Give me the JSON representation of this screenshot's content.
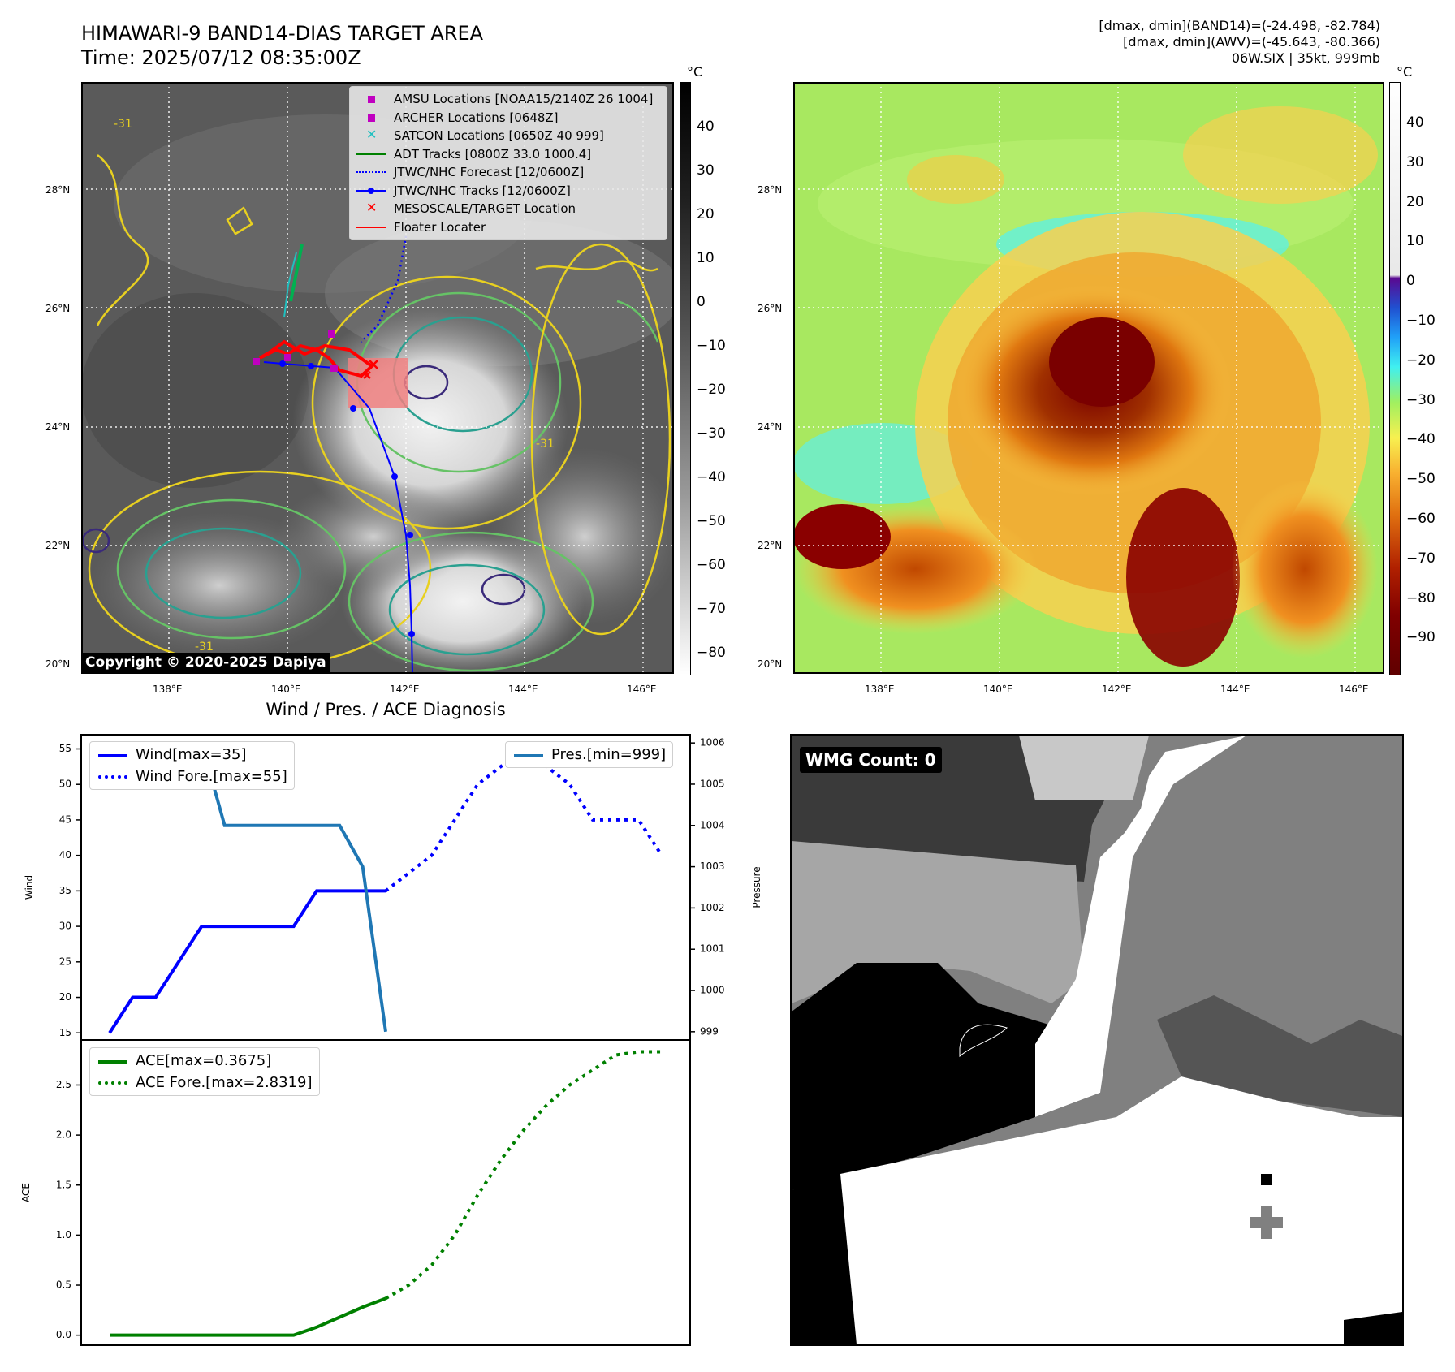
{
  "header": {
    "title_line1": "HIMAWARI-9 BAND14-DIAS TARGET AREA",
    "title_line2": "Time: 2025/07/12 08:35:00Z",
    "meta_line1": "[dmax, dmin](BAND14)=(-24.498, -82.784)",
    "meta_line2": "[dmax, dmin](AWV)=(-45.643, -80.366)",
    "meta_line3": "06W.SIX | 35kt, 999mb"
  },
  "map": {
    "lat_labels": [
      "28°N",
      "26°N",
      "24°N",
      "22°N",
      "20°N"
    ],
    "lon_labels": [
      "138°E",
      "140°E",
      "142°E",
      "144°E",
      "146°E"
    ],
    "copyright": "Copyright © 2020-2025 Dapiya",
    "contour_label": "-31",
    "legend": [
      {
        "label": "AMSU Locations [NOAA15/2140Z 26 1004]",
        "icon": "square-marker",
        "color": "#c000c0"
      },
      {
        "label": "ARCHER Locations [0648Z]",
        "icon": "square-marker",
        "color": "#c000c0"
      },
      {
        "label": "SATCON Locations [0650Z 40 999]",
        "icon": "x-marker",
        "color": "#20c0c0"
      },
      {
        "label": "ADT Tracks [0800Z 33.0 1000.4]",
        "icon": "solid-line",
        "color": "#008000"
      },
      {
        "label": "JTWC/NHC Forecast [12/0600Z]",
        "icon": "dotted-line",
        "color": "#0000ff"
      },
      {
        "label": "JTWC/NHC Tracks [12/0600Z]",
        "icon": "line-dot",
        "color": "#0000ff"
      },
      {
        "label": "MESOSCALE/TARGET Location",
        "icon": "x-marker",
        "color": "#ff0000"
      },
      {
        "label": "Floater Locater",
        "icon": "solid-line",
        "color": "#ff0000"
      }
    ]
  },
  "colorbar_gray": {
    "unit": "°C",
    "ticks": [
      "40",
      "30",
      "20",
      "10",
      "0",
      "−10",
      "−20",
      "−30",
      "−40",
      "−50",
      "−60",
      "−70",
      "−80"
    ]
  },
  "colorbar_color": {
    "unit": "°C",
    "ticks": [
      "40",
      "30",
      "20",
      "10",
      "0",
      "−10",
      "−20",
      "−30",
      "−40",
      "−50",
      "−60",
      "−70",
      "−80",
      "−90"
    ]
  },
  "diagnosis": {
    "title": "Wind / Pres. / ACE Diagnosis",
    "wind_axis_label": "Wind",
    "pressure_axis_label": "Pressure",
    "ace_axis_label": "ACE",
    "wind_ticks": [
      "55",
      "50",
      "45",
      "40",
      "35",
      "30",
      "25",
      "20",
      "15"
    ],
    "pressure_ticks": [
      "1006",
      "1005",
      "1004",
      "1003",
      "1002",
      "1001",
      "1000",
      "999"
    ],
    "ace_ticks": [
      "2.5",
      "2.0",
      "1.5",
      "1.0",
      "0.5",
      "0.0"
    ],
    "legend_wind": "Wind[max=35]",
    "legend_wind_fore": "Wind Fore.[max=55]",
    "legend_pres": "Pres.[min=999]",
    "legend_ace": "ACE[max=0.3675]",
    "legend_ace_fore": "ACE Fore.[max=2.8319]"
  },
  "chart_data": [
    {
      "type": "line",
      "title": "Wind / Pres. / ACE Diagnosis",
      "ylabel": "Wind",
      "ylim": [
        14,
        57
      ],
      "x": [
        0,
        1,
        2,
        3,
        4,
        5,
        6,
        7,
        8,
        9,
        10,
        11,
        12,
        13,
        14,
        15,
        16,
        17,
        18,
        19,
        20,
        21,
        22,
        23,
        24
      ],
      "series": [
        {
          "name": "Wind[max=35]",
          "color": "#0000ff",
          "style": "solid",
          "x": [
            0,
            1,
            2,
            3,
            4,
            5,
            6,
            7,
            8,
            9,
            10,
            11,
            12
          ],
          "values": [
            15,
            20,
            20,
            25,
            30,
            30,
            30,
            30,
            30,
            35,
            35,
            35,
            35
          ]
        },
        {
          "name": "Wind Fore.[max=55]",
          "color": "#0000ff",
          "style": "dotted",
          "x": [
            12,
            13,
            14,
            15,
            16,
            17,
            18,
            19,
            20,
            21,
            22,
            23,
            24
          ],
          "values": [
            35,
            37.5,
            40,
            45,
            50,
            52.5,
            55,
            52.5,
            50,
            45,
            45,
            45,
            40
          ]
        }
      ]
    },
    {
      "type": "line",
      "ylabel": "Pressure",
      "ylim": [
        998.8,
        1006.2
      ],
      "series": [
        {
          "name": "Pres.[min=999]",
          "color": "#1f77b4",
          "style": "solid",
          "x": [
            0,
            1,
            2,
            3,
            4,
            5,
            6,
            7,
            8,
            9,
            10,
            11,
            12
          ],
          "values": [
            1006,
            1006,
            1006,
            1006,
            1006,
            1004,
            1004,
            1004,
            1004,
            1004,
            1004,
            1003,
            999
          ]
        }
      ]
    },
    {
      "type": "line",
      "ylabel": "ACE",
      "ylim": [
        -0.1,
        2.95
      ],
      "series": [
        {
          "name": "ACE[max=0.3675]",
          "color": "#008000",
          "style": "solid",
          "x": [
            0,
            1,
            2,
            3,
            4,
            5,
            6,
            7,
            8,
            9,
            10,
            11,
            12
          ],
          "values": [
            0,
            0,
            0,
            0,
            0,
            0,
            0,
            0,
            0,
            0.08,
            0.18,
            0.28,
            0.3675
          ]
        },
        {
          "name": "ACE Fore.[max=2.8319]",
          "color": "#008000",
          "style": "dotted",
          "x": [
            12,
            13,
            14,
            15,
            16,
            17,
            18,
            19,
            20,
            21,
            22,
            23,
            24
          ],
          "values": [
            0.3675,
            0.5,
            0.7,
            1.0,
            1.4,
            1.75,
            2.05,
            2.3,
            2.5,
            2.65,
            2.8,
            2.8319,
            2.8319
          ]
        }
      ]
    }
  ],
  "wmg": {
    "label": "WMG Count: 0"
  }
}
